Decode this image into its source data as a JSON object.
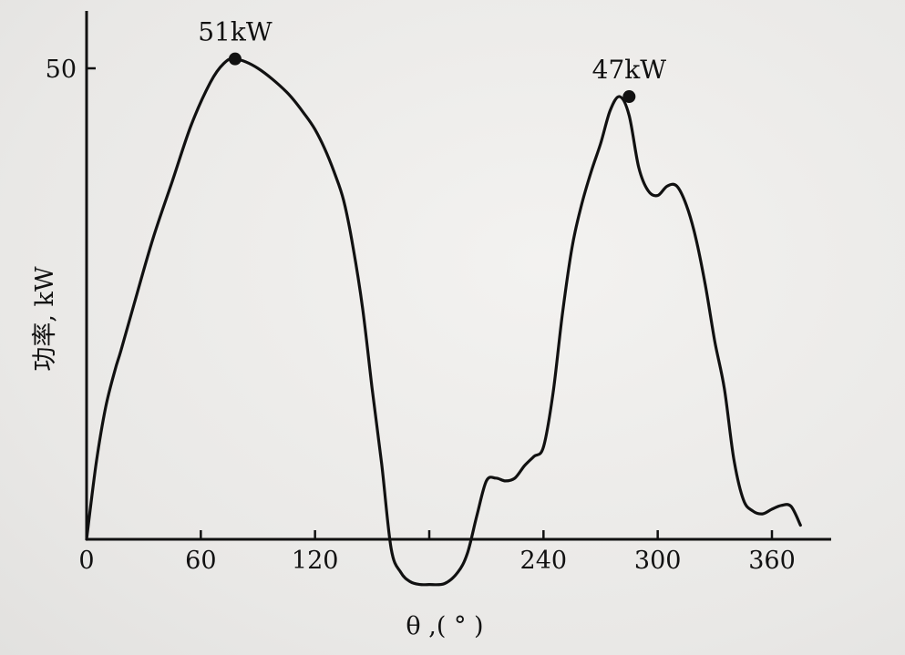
{
  "chart_data": {
    "type": "line",
    "xlabel": "θ ,( ° )",
    "ylabel": "功率, kW",
    "xlim": [
      0,
      380
    ],
    "ylim": [
      -5,
      56
    ],
    "xticks": [
      0,
      60,
      120,
      180,
      240,
      300,
      360
    ],
    "xtick_labels": [
      "0",
      "60",
      "120",
      "",
      "240",
      "300",
      "360"
    ],
    "yticks": [
      50
    ],
    "ytick_labels": [
      "50"
    ],
    "series": [
      {
        "x": [
          0,
          5,
          10,
          15,
          18,
          25,
          35,
          45,
          55,
          65,
          72,
          78,
          90,
          105,
          115,
          120,
          125,
          130,
          135,
          140,
          145,
          150,
          155,
          160,
          165,
          170,
          175,
          180,
          188,
          195,
          200,
          205,
          210,
          215,
          220,
          225,
          230,
          235,
          240,
          245,
          250,
          255,
          260,
          265,
          270,
          275,
          280,
          285,
          290,
          295,
          300,
          305,
          310,
          315,
          320,
          325,
          330,
          335,
          340,
          345,
          350,
          355,
          360,
          365,
          370,
          375
        ],
        "y": [
          0,
          8,
          14,
          18,
          20,
          25,
          32,
          38,
          44,
          48.5,
          50.5,
          51,
          50,
          47.5,
          45,
          43.5,
          41.5,
          39,
          36,
          31,
          24.5,
          16,
          8,
          -1,
          -3.5,
          -4.5,
          -4.8,
          -4.8,
          -4.7,
          -3.5,
          -1.5,
          2.5,
          6.2,
          6.5,
          6.2,
          6.5,
          7.8,
          8.8,
          9.8,
          15.5,
          24,
          31,
          35.5,
          39,
          42,
          45.5,
          47,
          45,
          39.5,
          37,
          36.5,
          37.5,
          37.5,
          35.5,
          32,
          27,
          21,
          16,
          8.5,
          4.2,
          3,
          2.7,
          3.2,
          3.6,
          3.5,
          1.5
        ]
      }
    ],
    "annotations": [
      {
        "text": "51kW",
        "x": 78,
        "y": 51
      },
      {
        "text": "47kW",
        "x": 285,
        "y": 47
      }
    ],
    "grid": false,
    "legend": "none"
  }
}
